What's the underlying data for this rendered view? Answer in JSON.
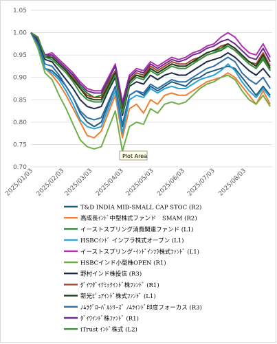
{
  "chart_data": {
    "type": "line",
    "tooltip": "Plot Area",
    "ylim": [
      0.7,
      1.05
    ],
    "yticks": [
      "0.70",
      "0.75",
      "0.80",
      "0.85",
      "0.90",
      "0.95",
      "1.00",
      "1.05"
    ],
    "yticks_values": [
      0.7,
      0.75,
      0.8,
      0.85,
      0.9,
      0.95,
      1.0,
      1.05
    ],
    "xticks": [
      "2025/01/03",
      "2025/02/03",
      "2025/03/03",
      "2025/04/03",
      "2025/05/03",
      "2025/06/03",
      "2025/07/03",
      "2025/08/03"
    ],
    "x_start": "2025/01/03",
    "x_end": "2025/08/31",
    "x": [
      "2025/01/03",
      "2025/01/10",
      "2025/01/17",
      "2025/01/24",
      "2025/01/31",
      "2025/02/07",
      "2025/02/14",
      "2025/02/21",
      "2025/02/28",
      "2025/03/07",
      "2025/03/14",
      "2025/03/21",
      "2025/03/28",
      "2025/04/04",
      "2025/04/11",
      "2025/04/18",
      "2025/04/25",
      "2025/05/02",
      "2025/05/09",
      "2025/05/16",
      "2025/05/23",
      "2025/05/30",
      "2025/06/06",
      "2025/06/13",
      "2025/06/20",
      "2025/06/27",
      "2025/07/04",
      "2025/07/11",
      "2025/07/18",
      "2025/07/25",
      "2025/08/01",
      "2025/08/08",
      "2025/08/15",
      "2025/08/22",
      "2025/08/29"
    ],
    "legend_position": "bottom",
    "grid": true,
    "series": [
      {
        "name": "T&D INDIA MID-SMALL CAP STOC (R2)",
        "color": "#1f5a7a",
        "values": [
          1.0,
          0.98,
          0.92,
          0.915,
          0.9,
          0.88,
          0.855,
          0.82,
          0.8,
          0.79,
          0.8,
          0.84,
          0.88,
          0.79,
          0.86,
          0.87,
          0.86,
          0.88,
          0.87,
          0.88,
          0.89,
          0.885,
          0.88,
          0.895,
          0.9,
          0.91,
          0.915,
          0.92,
          0.925,
          0.92,
          0.9,
          0.88,
          0.86,
          0.88,
          0.86
        ]
      },
      {
        "name": "高成長ｲﾝﾄﾞ中型株式ファンド　SMAM (R2)",
        "color": "#ed7d31",
        "values": [
          1.0,
          0.97,
          0.92,
          0.905,
          0.885,
          0.86,
          0.83,
          0.8,
          0.77,
          0.765,
          0.78,
          0.82,
          0.86,
          0.765,
          0.83,
          0.84,
          0.82,
          0.85,
          0.84,
          0.86,
          0.865,
          0.86,
          0.86,
          0.87,
          0.88,
          0.89,
          0.895,
          0.9,
          0.91,
          0.9,
          0.88,
          0.86,
          0.84,
          0.87,
          0.84
        ]
      },
      {
        "name": "イーストスプリング消費関連ファンド (L1)",
        "color": "#2e7d32",
        "values": [
          1.0,
          0.99,
          0.945,
          0.95,
          0.935,
          0.92,
          0.905,
          0.88,
          0.865,
          0.855,
          0.86,
          0.89,
          0.915,
          0.835,
          0.895,
          0.905,
          0.9,
          0.92,
          0.91,
          0.92,
          0.93,
          0.925,
          0.925,
          0.935,
          0.94,
          0.95,
          0.955,
          0.96,
          0.97,
          0.96,
          0.945,
          0.93,
          0.92,
          0.94,
          0.915
        ]
      },
      {
        "name": "HSBCｲﾝﾄﾞ インフラ株式オープン (L1)",
        "color": "#2aa0d8",
        "values": [
          1.0,
          0.97,
          0.92,
          0.91,
          0.895,
          0.87,
          0.84,
          0.805,
          0.79,
          0.785,
          0.79,
          0.83,
          0.87,
          0.775,
          0.85,
          0.86,
          0.855,
          0.875,
          0.865,
          0.875,
          0.88,
          0.875,
          0.875,
          0.885,
          0.895,
          0.9,
          0.905,
          0.915,
          0.93,
          0.915,
          0.89,
          0.87,
          0.855,
          0.875,
          0.855
        ]
      },
      {
        "name": "イーストスプリング･ｲﾝﾄﾞｲﾝﾌﾗ株式ﾌｧﾝﾄﾞ (L1)",
        "color": "#b030b0",
        "values": [
          1.0,
          0.985,
          0.95,
          0.955,
          0.94,
          0.925,
          0.91,
          0.89,
          0.875,
          0.87,
          0.87,
          0.9,
          0.93,
          0.845,
          0.905,
          0.92,
          0.915,
          0.935,
          0.925,
          0.935,
          0.945,
          0.94,
          0.945,
          0.955,
          0.96,
          0.97,
          0.975,
          0.99,
          1.0,
          0.99,
          0.97,
          0.955,
          0.95,
          0.975,
          0.945
        ]
      },
      {
        "name": "HSBCインド小型株OPEN (R1)",
        "color": "#70ad47",
        "values": [
          1.0,
          0.965,
          0.91,
          0.895,
          0.86,
          0.83,
          0.795,
          0.76,
          0.745,
          0.74,
          0.745,
          0.785,
          0.825,
          0.735,
          0.79,
          0.8,
          0.795,
          0.83,
          0.82,
          0.84,
          0.845,
          0.84,
          0.845,
          0.86,
          0.875,
          0.885,
          0.89,
          0.9,
          0.905,
          0.895,
          0.87,
          0.85,
          0.84,
          0.86,
          0.835
        ]
      },
      {
        "name": "野村インド株投信 (R3)",
        "color": "#1b2a4a",
        "values": [
          1.0,
          0.98,
          0.94,
          0.935,
          0.915,
          0.895,
          0.875,
          0.85,
          0.835,
          0.83,
          0.835,
          0.87,
          0.9,
          0.815,
          0.88,
          0.89,
          0.885,
          0.905,
          0.895,
          0.905,
          0.91,
          0.905,
          0.905,
          0.915,
          0.925,
          0.935,
          0.94,
          0.945,
          0.955,
          0.945,
          0.93,
          0.915,
          0.905,
          0.92,
          0.9
        ]
      },
      {
        "name": "ﾀﾞｲﾜﾀﾞｲﾅﾐｯｸｲﾝﾄﾞ株ﾌｧﾝﾄﾞ (R1)",
        "color": "#a0482a",
        "values": [
          1.0,
          0.985,
          0.945,
          0.945,
          0.93,
          0.915,
          0.9,
          0.875,
          0.86,
          0.855,
          0.855,
          0.885,
          0.915,
          0.83,
          0.895,
          0.91,
          0.905,
          0.925,
          0.915,
          0.925,
          0.935,
          0.93,
          0.93,
          0.94,
          0.945,
          0.955,
          0.96,
          0.97,
          0.975,
          0.965,
          0.95,
          0.935,
          0.93,
          0.955,
          0.925
        ]
      },
      {
        "name": "新光ﾋﾟｭｱｲﾝﾄﾞ株式ﾌｧﾝﾄﾞ (L1)",
        "color": "#1e3d1e",
        "values": [
          1.0,
          0.985,
          0.945,
          0.945,
          0.93,
          0.915,
          0.895,
          0.875,
          0.855,
          0.85,
          0.85,
          0.88,
          0.91,
          0.825,
          0.89,
          0.905,
          0.9,
          0.92,
          0.91,
          0.92,
          0.93,
          0.925,
          0.925,
          0.935,
          0.945,
          0.955,
          0.96,
          0.965,
          0.975,
          0.965,
          0.95,
          0.935,
          0.925,
          0.95,
          0.92
        ]
      },
      {
        "name": "ﾉﾑﾗｸﾞﾛｰﾊﾞﾙｼﾘｰｽﾞ ﾉﾑﾗｲﾝﾄﾞ印度フォーカス (R3)",
        "color": "#2c6fa8",
        "values": [
          1.0,
          0.975,
          0.93,
          0.925,
          0.905,
          0.88,
          0.855,
          0.825,
          0.81,
          0.805,
          0.81,
          0.845,
          0.88,
          0.795,
          0.86,
          0.87,
          0.865,
          0.885,
          0.875,
          0.885,
          0.895,
          0.89,
          0.89,
          0.9,
          0.91,
          0.92,
          0.925,
          0.935,
          0.945,
          0.935,
          0.91,
          0.895,
          0.885,
          0.9,
          0.875
        ]
      },
      {
        "name": "ﾀﾞｲﾜｲﾝﾄﾞ株ﾌｧﾝﾄﾞ (R1)",
        "color": "#6a2c8a",
        "values": [
          1.0,
          0.985,
          0.95,
          0.95,
          0.935,
          0.92,
          0.905,
          0.885,
          0.87,
          0.865,
          0.865,
          0.895,
          0.925,
          0.84,
          0.9,
          0.915,
          0.91,
          0.93,
          0.92,
          0.93,
          0.94,
          0.935,
          0.94,
          0.95,
          0.955,
          0.965,
          0.97,
          0.98,
          0.985,
          0.975,
          0.96,
          0.945,
          0.94,
          0.965,
          0.935
        ]
      },
      {
        "name": "iTrust ｲﾝﾄﾞ株式 (L2)",
        "color": "#3e8e3e",
        "values": [
          1.0,
          0.99,
          0.945,
          0.94,
          0.925,
          0.91,
          0.89,
          0.865,
          0.85,
          0.845,
          0.845,
          0.875,
          0.905,
          0.82,
          0.885,
          0.9,
          0.895,
          0.915,
          0.905,
          0.915,
          0.925,
          0.92,
          0.92,
          0.93,
          0.94,
          0.95,
          0.955,
          0.965,
          0.97,
          0.96,
          0.945,
          0.93,
          0.92,
          0.945,
          0.915
        ]
      }
    ]
  }
}
